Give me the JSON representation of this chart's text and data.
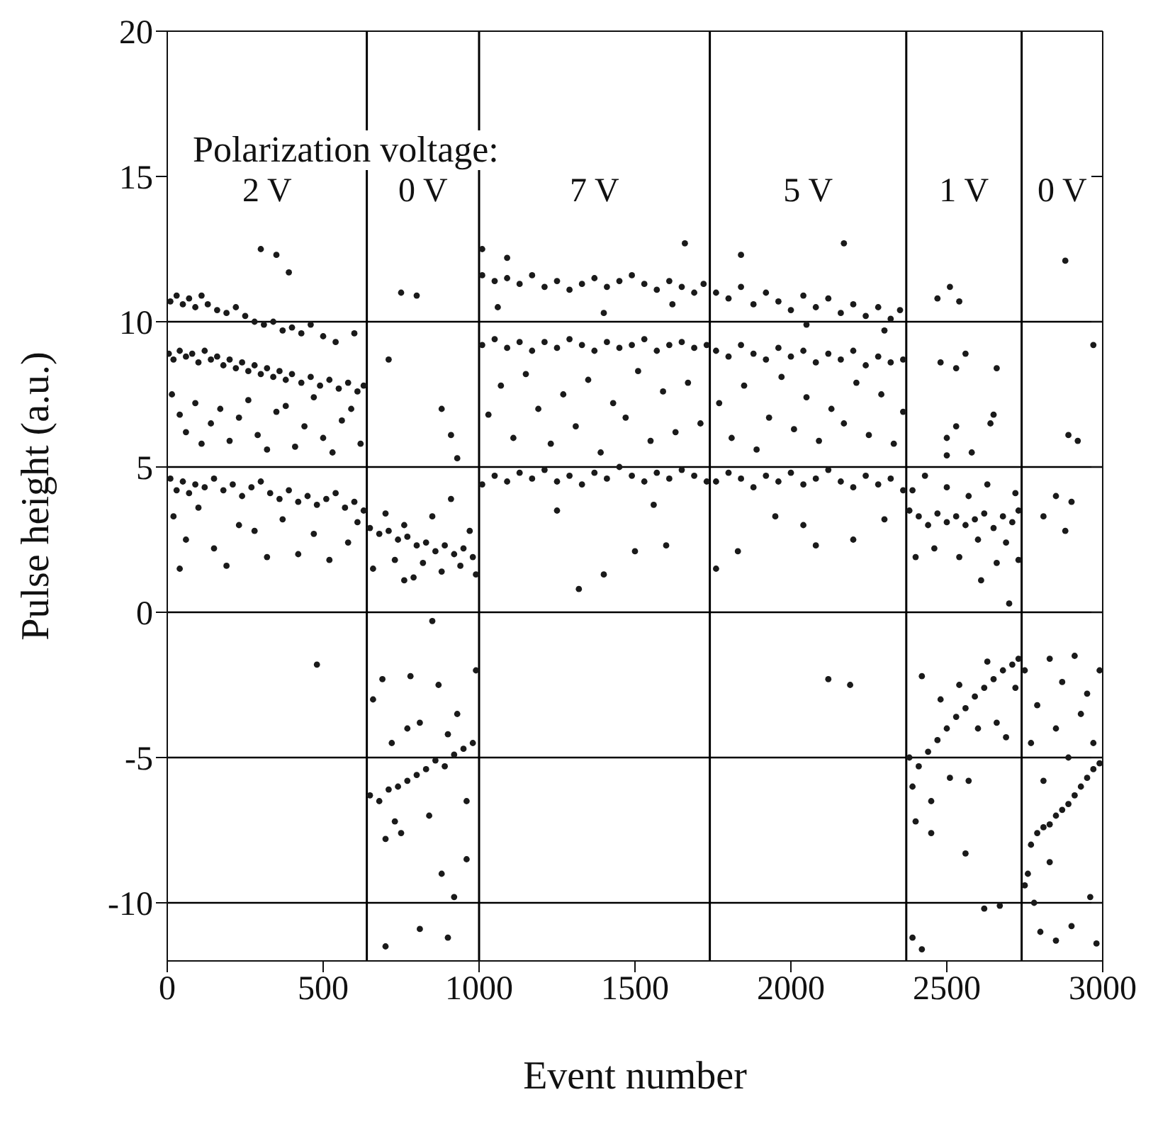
{
  "chart_data": {
    "type": "scatter",
    "xlabel": "Event number",
    "ylabel": "Pulse height (a.u.)",
    "color": "#1a1a1a",
    "marker": "circle",
    "xlim": [
      0,
      3000
    ],
    "xticks": [
      0,
      500,
      1000,
      1500,
      2000,
      2500,
      3000
    ],
    "ylim": [
      -12,
      20
    ],
    "yticks": [
      -10,
      -5,
      0,
      5,
      10,
      15,
      20
    ],
    "ref_lines": [
      {
        "axis": "x",
        "value": 640,
        "color": "#000000"
      },
      {
        "axis": "x",
        "value": 1000,
        "color": "#000000"
      },
      {
        "axis": "x",
        "value": 1740,
        "color": "#000000"
      },
      {
        "axis": "x",
        "value": 2370,
        "color": "#000000"
      },
      {
        "axis": "x",
        "value": 2740,
        "color": "#000000"
      },
      {
        "axis": "y",
        "value": -10,
        "color": "#000000"
      },
      {
        "axis": "y",
        "value": -5,
        "color": "#000000"
      },
      {
        "axis": "y",
        "value": 0,
        "color": "#000000"
      },
      {
        "axis": "y",
        "value": 5,
        "color": "#000000"
      },
      {
        "axis": "y",
        "value": 10,
        "color": "#000000"
      }
    ],
    "annotations": [
      "Polarization voltage:",
      "2 V",
      "0 V",
      "7 V",
      "5 V",
      "1 V",
      "0 V"
    ],
    "x": [
      10,
      30,
      50,
      70,
      90,
      110,
      130,
      160,
      190,
      220,
      250,
      280,
      310,
      340,
      370,
      400,
      430,
      460,
      500,
      540,
      600,
      5,
      20,
      40,
      60,
      80,
      100,
      120,
      140,
      160,
      180,
      200,
      220,
      240,
      260,
      280,
      300,
      320,
      340,
      360,
      380,
      400,
      430,
      460,
      490,
      520,
      550,
      580,
      610,
      630,
      15,
      40,
      60,
      90,
      110,
      140,
      170,
      200,
      230,
      260,
      290,
      320,
      350,
      380,
      410,
      440,
      470,
      500,
      530,
      560,
      590,
      620,
      10,
      30,
      50,
      70,
      90,
      120,
      150,
      180,
      210,
      240,
      270,
      300,
      330,
      360,
      390,
      420,
      450,
      480,
      510,
      540,
      570,
      600,
      630,
      20,
      60,
      100,
      150,
      190,
      230,
      280,
      320,
      370,
      420,
      470,
      520,
      580,
      610,
      40,
      300,
      350,
      390,
      480,
      650,
      680,
      710,
      740,
      770,
      800,
      830,
      860,
      890,
      920,
      950,
      980,
      660,
      700,
      730,
      760,
      790,
      820,
      850,
      880,
      910,
      940,
      970,
      990,
      760,
      750,
      800,
      710,
      880,
      910,
      930,
      650,
      680,
      710,
      740,
      770,
      800,
      830,
      860,
      890,
      920,
      950,
      980,
      660,
      690,
      720,
      750,
      780,
      810,
      840,
      870,
      900,
      930,
      960,
      990,
      700,
      730,
      770,
      850,
      880,
      920,
      960,
      700,
      900,
      810,
      1010,
      1050,
      1090,
      1130,
      1170,
      1210,
      1250,
      1290,
      1330,
      1370,
      1410,
      1450,
      1490,
      1530,
      1570,
      1610,
      1650,
      1690,
      1720,
      1010,
      1050,
      1090,
      1130,
      1170,
      1210,
      1250,
      1290,
      1330,
      1370,
      1410,
      1450,
      1490,
      1530,
      1570,
      1610,
      1650,
      1690,
      1730,
      1030,
      1070,
      1110,
      1150,
      1190,
      1230,
      1270,
      1310,
      1350,
      1390,
      1430,
      1470,
      1510,
      1550,
      1590,
      1630,
      1670,
      1710,
      1060,
      1400,
      1620,
      1010,
      1050,
      1090,
      1130,
      1170,
      1210,
      1250,
      1290,
      1330,
      1370,
      1410,
      1450,
      1490,
      1530,
      1570,
      1610,
      1650,
      1690,
      1730,
      1010,
      1090,
      1320,
      1250,
      1400,
      1500,
      1600,
      1560,
      1660,
      1760,
      1800,
      1840,
      1880,
      1920,
      1960,
      2000,
      2040,
      2080,
      2120,
      2160,
      2200,
      2240,
      2280,
      2320,
      2350,
      1760,
      1800,
      1840,
      1880,
      1920,
      1960,
      2000,
      2040,
      2080,
      2120,
      2160,
      2200,
      2240,
      2280,
      2320,
      2360,
      1770,
      1810,
      1850,
      1890,
      1930,
      1970,
      2010,
      2050,
      2090,
      2130,
      2170,
      2210,
      2250,
      2290,
      2330,
      2360,
      2050,
      2300,
      1760,
      1800,
      1840,
      1880,
      1920,
      1960,
      2000,
      2040,
      2080,
      2120,
      2160,
      2200,
      2240,
      2280,
      2320,
      2360,
      1840,
      2170,
      1830,
      1950,
      2040,
      2080,
      2200,
      2300,
      2120,
      2190,
      1760,
      2470,
      2510,
      2540,
      2560,
      2530,
      2660,
      2650,
      2480,
      2500,
      2530,
      2580,
      2640,
      2500,
      2380,
      2410,
      2440,
      2470,
      2500,
      2530,
      2560,
      2590,
      2620,
      2650,
      2680,
      2710,
      2730,
      2390,
      2430,
      2460,
      2500,
      2540,
      2570,
      2600,
      2630,
      2660,
      2690,
      2720,
      2730,
      2400,
      2610,
      2700,
      2380,
      2410,
      2440,
      2470,
      2500,
      2530,
      2560,
      2590,
      2620,
      2650,
      2680,
      2710,
      2730,
      2390,
      2420,
      2450,
      2480,
      2510,
      2540,
      2570,
      2600,
      2630,
      2660,
      2690,
      2720,
      2400,
      2450,
      2560,
      2620,
      2670,
      2420,
      2390,
      2880,
      2970,
      2890,
      2920,
      2850,
      2900,
      2810,
      2880,
      2750,
      2770,
      2790,
      2810,
      2830,
      2850,
      2870,
      2890,
      2910,
      2930,
      2950,
      2970,
      2990,
      2750,
      2770,
      2790,
      2810,
      2830,
      2850,
      2870,
      2890,
      2910,
      2930,
      2950,
      2970,
      2990,
      2760,
      2780,
      2800,
      2850,
      2900,
      2960,
      2980,
      2830
    ],
    "values": [
      10.7,
      10.9,
      10.6,
      10.8,
      10.5,
      10.9,
      10.6,
      10.4,
      10.3,
      10.5,
      10.2,
      10.0,
      9.9,
      10.0,
      9.7,
      9.8,
      9.6,
      9.9,
      9.5,
      9.3,
      9.6,
      8.9,
      8.7,
      9.0,
      8.8,
      8.9,
      8.6,
      9.0,
      8.7,
      8.8,
      8.5,
      8.7,
      8.4,
      8.6,
      8.3,
      8.5,
      8.2,
      8.4,
      8.1,
      8.3,
      8.0,
      8.2,
      7.9,
      8.1,
      7.8,
      8.0,
      7.7,
      7.9,
      7.6,
      7.8,
      7.5,
      6.8,
      6.2,
      7.2,
      5.8,
      6.5,
      7.0,
      5.9,
      6.7,
      7.3,
      6.1,
      5.6,
      6.9,
      7.1,
      5.7,
      6.4,
      7.4,
      6.0,
      5.5,
      6.6,
      7.0,
      5.8,
      4.6,
      4.2,
      4.5,
      4.1,
      4.4,
      4.3,
      4.6,
      4.2,
      4.4,
      4.0,
      4.3,
      4.5,
      4.1,
      3.9,
      4.2,
      3.8,
      4.0,
      3.7,
      3.9,
      4.1,
      3.6,
      3.8,
      3.5,
      3.3,
      2.5,
      3.6,
      2.2,
      1.6,
      3.0,
      2.8,
      1.9,
      3.2,
      2.0,
      2.7,
      1.8,
      2.4,
      3.1,
      1.5,
      12.5,
      12.3,
      11.7,
      -1.8,
      2.9,
      2.7,
      2.8,
      2.5,
      2.6,
      2.3,
      2.4,
      2.1,
      2.3,
      2.0,
      2.2,
      1.9,
      1.5,
      3.4,
      1.8,
      3.0,
      1.2,
      1.7,
      3.3,
      1.4,
      3.9,
      1.6,
      2.8,
      1.3,
      1.1,
      11.0,
      10.9,
      8.7,
      7.0,
      6.1,
      5.3,
      -6.3,
      -6.5,
      -6.1,
      -6.0,
      -5.8,
      -5.6,
      -5.4,
      -5.1,
      -5.3,
      -4.9,
      -4.7,
      -4.5,
      -3.0,
      -2.3,
      -4.5,
      -7.6,
      -2.2,
      -3.8,
      -7.0,
      -2.5,
      -4.2,
      -3.5,
      -6.5,
      -2.0,
      -7.8,
      -7.2,
      -4.0,
      -0.3,
      -9.0,
      -9.8,
      -8.5,
      -11.5,
      -11.2,
      -10.9,
      11.6,
      11.4,
      11.5,
      11.3,
      11.6,
      11.2,
      11.4,
      11.1,
      11.3,
      11.5,
      11.2,
      11.4,
      11.6,
      11.3,
      11.1,
      11.4,
      11.2,
      11.0,
      11.3,
      9.2,
      9.4,
      9.1,
      9.3,
      9.0,
      9.3,
      9.1,
      9.4,
      9.2,
      9.0,
      9.3,
      9.1,
      9.2,
      9.4,
      9.0,
      9.2,
      9.3,
      9.1,
      9.2,
      6.8,
      7.8,
      6.0,
      8.2,
      7.0,
      5.8,
      7.5,
      6.4,
      8.0,
      5.5,
      7.2,
      6.7,
      8.3,
      5.9,
      7.6,
      6.2,
      7.9,
      6.5,
      10.5,
      10.3,
      10.6,
      4.4,
      4.7,
      4.5,
      4.8,
      4.6,
      4.9,
      4.5,
      4.7,
      4.4,
      4.8,
      4.6,
      5.0,
      4.7,
      4.5,
      4.8,
      4.6,
      4.9,
      4.7,
      4.5,
      12.5,
      12.2,
      0.8,
      3.5,
      1.3,
      2.1,
      2.3,
      3.7,
      12.7,
      11.0,
      10.8,
      11.2,
      10.6,
      11.0,
      10.7,
      10.4,
      10.9,
      10.5,
      10.8,
      10.3,
      10.6,
      10.2,
      10.5,
      10.1,
      10.4,
      9.0,
      8.8,
      9.2,
      8.9,
      8.7,
      9.1,
      8.8,
      9.0,
      8.6,
      8.9,
      8.7,
      9.0,
      8.5,
      8.8,
      8.6,
      8.7,
      7.2,
      6.0,
      7.8,
      5.6,
      6.7,
      8.1,
      6.3,
      7.4,
      5.9,
      7.0,
      6.5,
      7.9,
      6.1,
      7.5,
      5.8,
      6.9,
      9.9,
      9.7,
      4.5,
      4.8,
      4.6,
      4.3,
      4.7,
      4.5,
      4.8,
      4.4,
      4.6,
      4.9,
      4.5,
      4.3,
      4.7,
      4.4,
      4.6,
      4.2,
      12.3,
      12.7,
      2.1,
      3.3,
      3.0,
      2.3,
      2.5,
      3.2,
      -2.3,
      -2.5,
      1.5,
      10.8,
      11.2,
      10.7,
      8.9,
      8.4,
      8.4,
      6.8,
      8.6,
      6.0,
      6.4,
      5.5,
      6.5,
      5.4,
      3.5,
      3.3,
      3.0,
      3.4,
      3.1,
      3.3,
      3.0,
      3.2,
      3.4,
      2.9,
      3.3,
      3.1,
      3.5,
      4.2,
      4.7,
      2.2,
      4.3,
      1.9,
      4.0,
      2.5,
      4.4,
      1.7,
      2.4,
      4.1,
      1.8,
      1.9,
      1.1,
      0.3,
      -5.0,
      -5.3,
      -4.8,
      -4.4,
      -4.0,
      -3.6,
      -3.3,
      -2.9,
      -2.6,
      -2.3,
      -2.0,
      -1.8,
      -1.6,
      -6.0,
      -2.2,
      -6.5,
      -3.0,
      -5.7,
      -2.5,
      -5.8,
      -4.0,
      -1.7,
      -3.8,
      -4.3,
      -2.6,
      -7.2,
      -7.6,
      -8.3,
      -10.2,
      -10.1,
      -11.6,
      -11.2,
      12.1,
      9.2,
      6.1,
      5.9,
      4.0,
      3.8,
      3.3,
      2.8,
      -9.4,
      -8.0,
      -7.6,
      -7.4,
      -7.3,
      -7.0,
      -6.8,
      -6.6,
      -6.3,
      -6.0,
      -5.7,
      -5.4,
      -5.2,
      -2.0,
      -4.5,
      -3.2,
      -5.8,
      -1.6,
      -4.0,
      -2.4,
      -5.0,
      -1.5,
      -3.5,
      -2.8,
      -4.5,
      -2.0,
      -9.0,
      -10.0,
      -11.0,
      -11.3,
      -10.8,
      -9.8,
      -11.4,
      -8.6
    ]
  }
}
